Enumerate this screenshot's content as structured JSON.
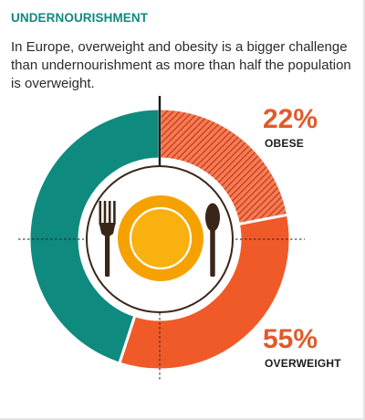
{
  "header": {
    "title": "UNDERNOURISHMENT",
    "subtitle": "In Europe, overweight and obesity is a bigger challenge than undernourishment as more than half the population is overweight."
  },
  "colors": {
    "teal": "#0f8a7e",
    "orange": "#f05a28",
    "obese_hatch_base": "#f47d55",
    "obese_hatch_line": "#c9381a",
    "text_orange": "#e05a2b",
    "plate_ring": "#f5a200",
    "plate_fill": "#f9b10f",
    "cutlery": "#3a2618"
  },
  "icons": [
    "fork-icon",
    "plate-icon",
    "spoon-icon"
  ],
  "chart_data": {
    "type": "pie",
    "title": "UNDERNOURISHMENT",
    "subtitle": "In Europe, overweight and obesity is a bigger challenge than undernourishment as more than half the population is overweight.",
    "ring_values": [
      22,
      33,
      45
    ],
    "slices": [
      {
        "label": "OBESE",
        "value_label": "22%",
        "value": 22,
        "color": "#f47d55",
        "pattern": "hatched"
      },
      {
        "label": "",
        "value": 33,
        "color": "#f05a28"
      },
      {
        "label": "",
        "value": 45,
        "color": "#0f8a7e"
      }
    ],
    "callouts": [
      {
        "value_label": "22%",
        "label": "OBESE",
        "value": 22
      },
      {
        "value_label": "55%",
        "label": "OVERWEIGHT",
        "value": 55
      }
    ],
    "legend": "none"
  }
}
